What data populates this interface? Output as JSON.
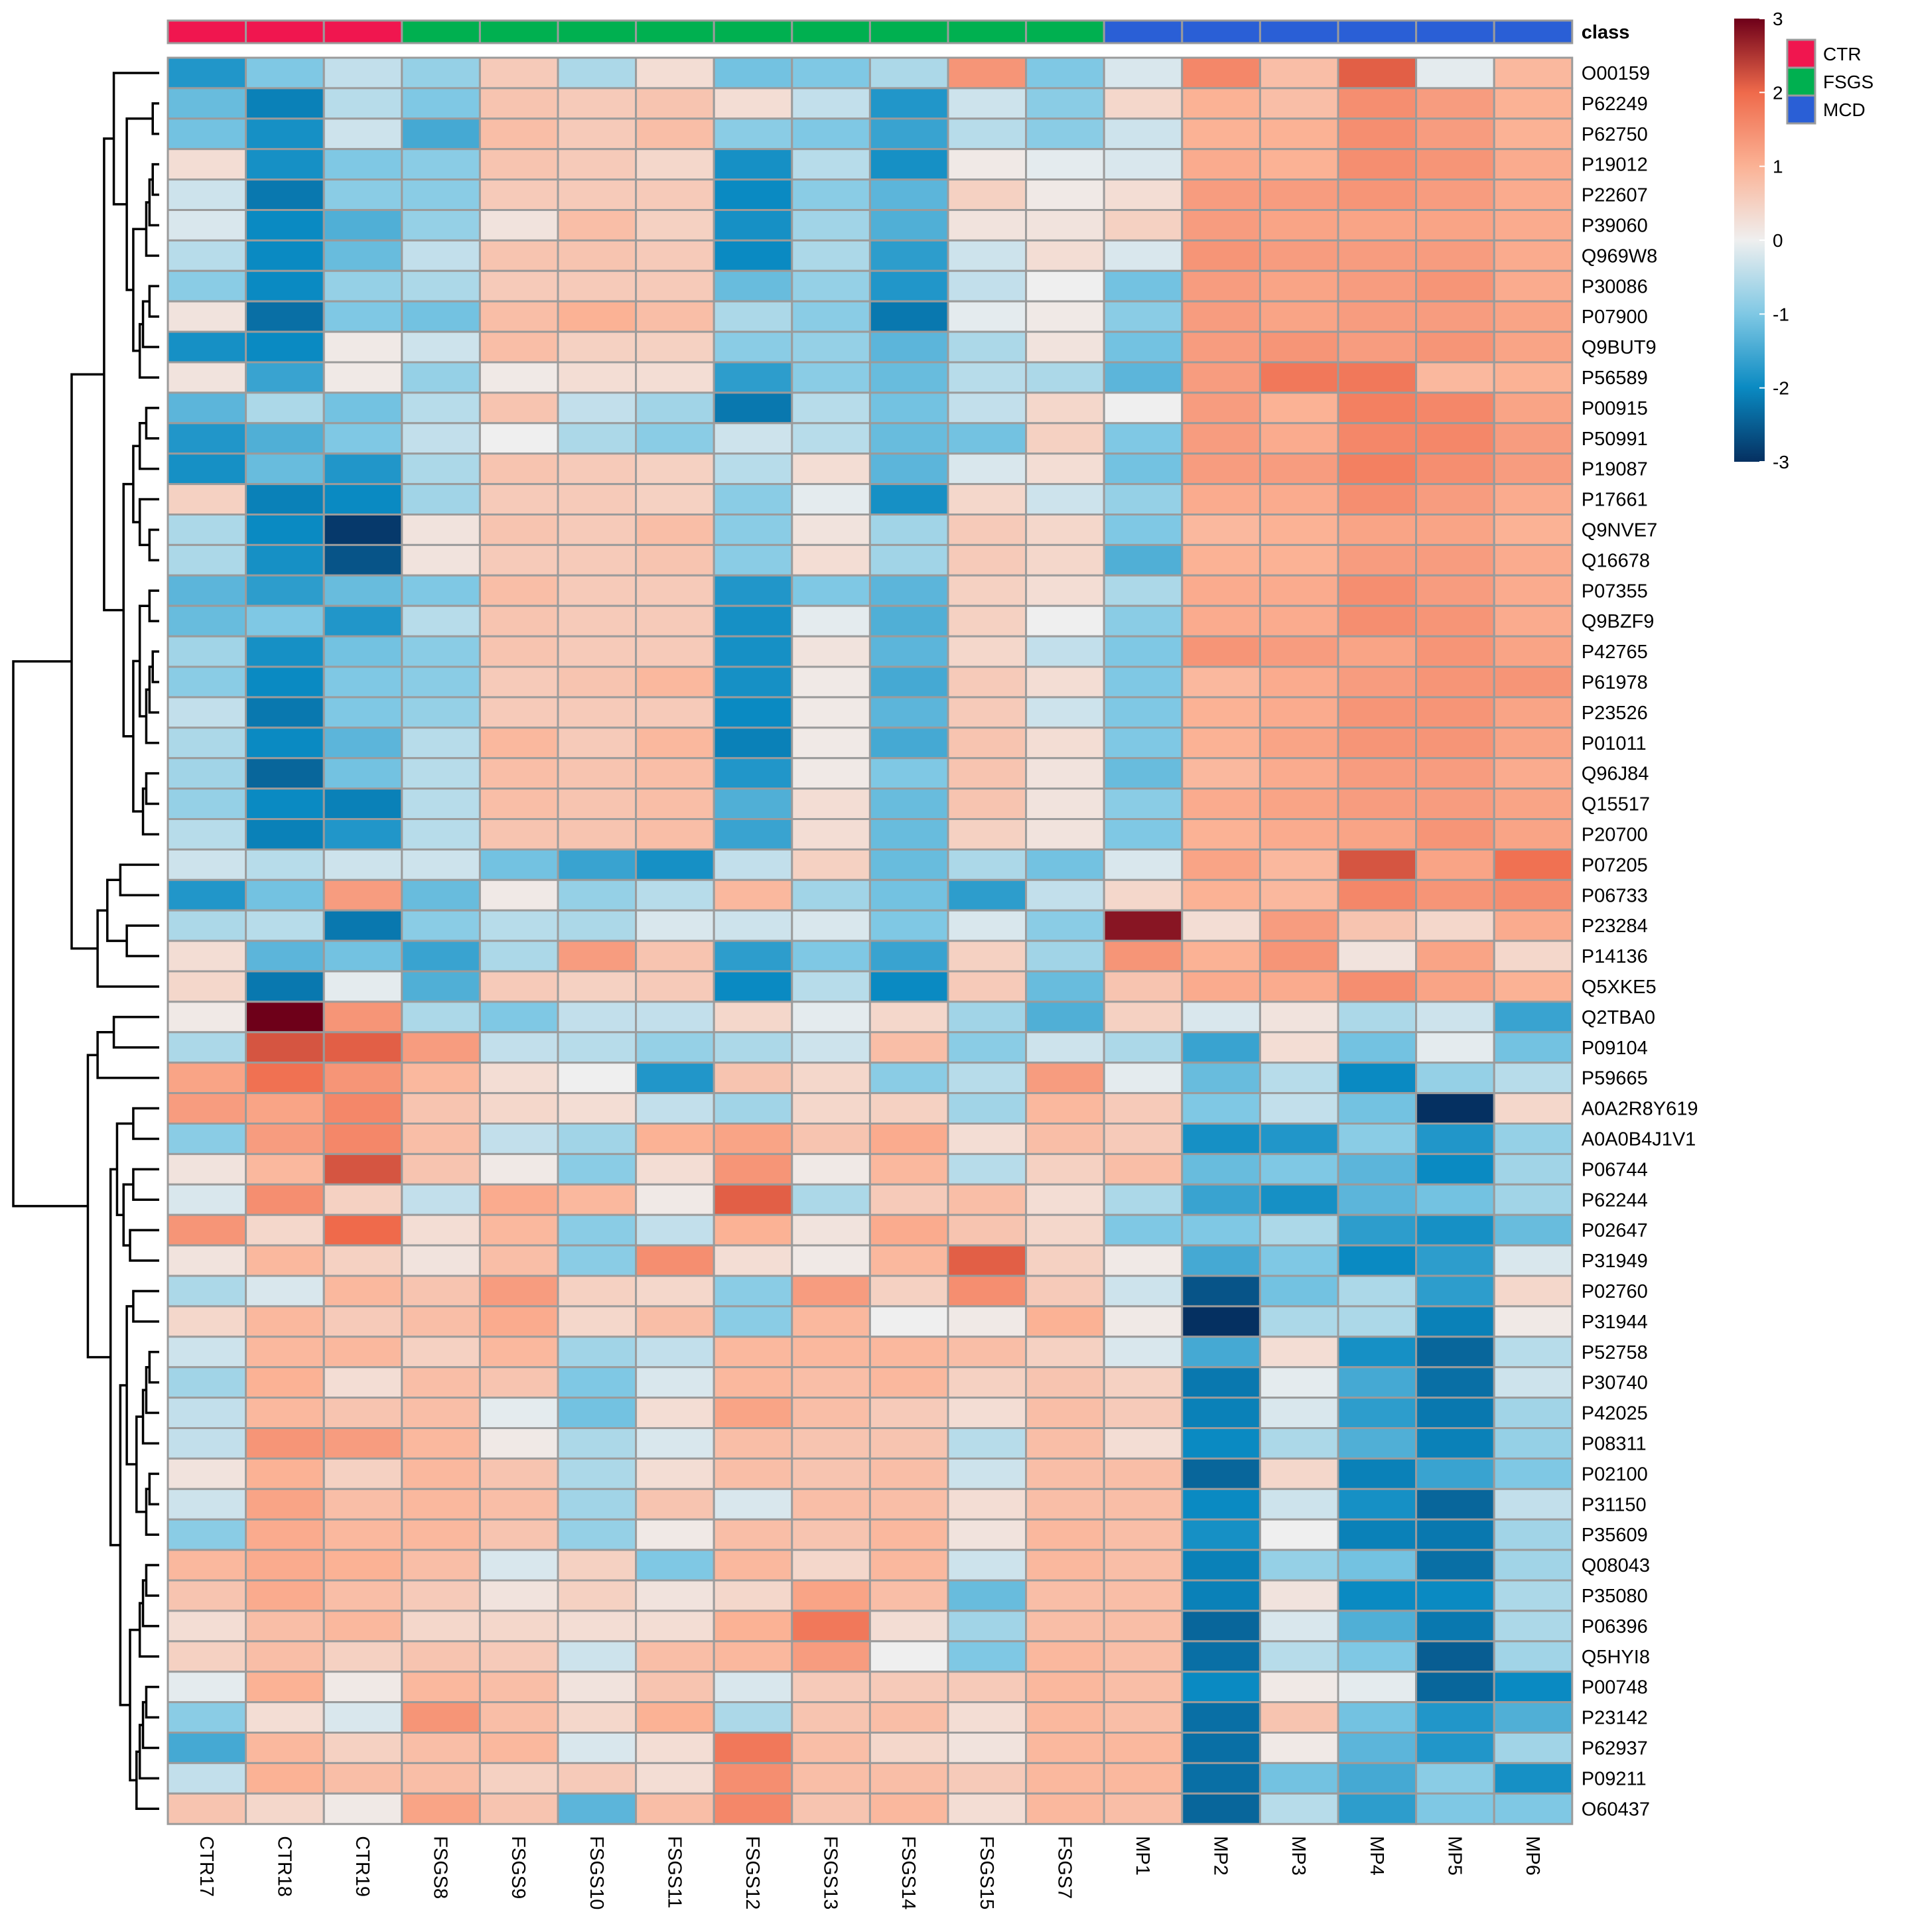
{
  "chart_data": {
    "type": "heatmap",
    "annotation_label": "class",
    "columns": [
      "CTR17",
      "CTR18",
      "CTR19",
      "FSGS8",
      "FSGS9",
      "FSGS10",
      "FSGS11",
      "FSGS12",
      "FSGS13",
      "FSGS14",
      "FSGS15",
      "FSGS7",
      "MP1",
      "MP2",
      "MP3",
      "MP4",
      "MP5",
      "MP6"
    ],
    "column_classes": [
      "CTR",
      "CTR",
      "CTR",
      "FSGS",
      "FSGS",
      "FSGS",
      "FSGS",
      "FSGS",
      "FSGS",
      "FSGS",
      "FSGS",
      "FSGS",
      "MCD",
      "MCD",
      "MCD",
      "MCD",
      "MCD",
      "MCD"
    ],
    "classes": [
      {
        "name": "CTR",
        "color": "#f0164f"
      },
      {
        "name": "FSGS",
        "color": "#00b050"
      },
      {
        "name": "MCD",
        "color": "#2a5fd6"
      }
    ],
    "colorscale": {
      "range": [
        -3,
        3
      ],
      "ticks": [
        3,
        2,
        1,
        0,
        -1,
        -2,
        -3
      ],
      "stops": [
        {
          "v": -3,
          "c": "#053061"
        },
        {
          "v": -2,
          "c": "#0a8ac2"
        },
        {
          "v": -1,
          "c": "#7fc8e4"
        },
        {
          "v": 0,
          "c": "#efefef"
        },
        {
          "v": 1,
          "c": "#fbb295"
        },
        {
          "v": 2,
          "c": "#ef6a4b"
        },
        {
          "v": 3,
          "c": "#6e0019"
        }
      ]
    },
    "rows": [
      "O00159",
      "P62249",
      "P62750",
      "P19012",
      "P22607",
      "P39060",
      "Q969W8",
      "P30086",
      "P07900",
      "Q9BUT9",
      "P56589",
      "P00915",
      "P50991",
      "P19087",
      "P17661",
      "Q9NVE7",
      "Q16678",
      "P07355",
      "Q9BZF9",
      "P42765",
      "P61978",
      "P23526",
      "P01011",
      "Q96J84",
      "Q15517",
      "P20700",
      "P07205",
      "P06733",
      "P23284",
      "P14136",
      "Q5XKE5",
      "Q2TBA0",
      "P09104",
      "P59665",
      "A0A2R8Y619",
      "A0A0B4J1V1",
      "P06744",
      "P62244",
      "P02647",
      "P31949",
      "P02760",
      "P31944",
      "P52758",
      "P30740",
      "P42025",
      "P08311",
      "P02100",
      "P31150",
      "P35609",
      "Q08043",
      "P35080",
      "P06396",
      "Q5HYI8",
      "P00748",
      "P23142",
      "P62937",
      "P09211",
      "O60437"
    ],
    "values": [
      [
        -1.8,
        -1.0,
        -0.4,
        -0.8,
        0.6,
        -0.6,
        0.3,
        -1.1,
        -1.0,
        -0.6,
        1.4,
        -1.0,
        -0.2,
        1.6,
        0.8,
        2.1,
        -0.1,
        0.9
      ],
      [
        -1.2,
        -2.1,
        -0.5,
        -1.0,
        0.7,
        0.6,
        0.7,
        0.3,
        -0.4,
        -1.8,
        -0.3,
        -0.9,
        0.4,
        1.0,
        0.8,
        1.5,
        1.3,
        1.0
      ],
      [
        -1.1,
        -1.9,
        -0.3,
        -1.5,
        0.8,
        0.6,
        0.8,
        -0.9,
        -1.0,
        -1.6,
        -0.5,
        -0.9,
        -0.3,
        1.0,
        1.0,
        1.5,
        1.3,
        1.0
      ],
      [
        0.3,
        -1.9,
        -1.0,
        -0.9,
        0.7,
        0.6,
        0.4,
        -1.9,
        -0.5,
        -1.9,
        0.1,
        -0.1,
        -0.2,
        1.1,
        1.0,
        1.5,
        1.4,
        1.1
      ],
      [
        -0.3,
        -2.2,
        -0.9,
        -0.9,
        0.6,
        0.6,
        0.6,
        -2.0,
        -0.9,
        -1.3,
        0.5,
        0.1,
        0.3,
        1.3,
        1.3,
        1.4,
        1.3,
        1.1
      ],
      [
        -0.2,
        -2.0,
        -1.4,
        -0.8,
        0.2,
        0.8,
        0.5,
        -1.9,
        -0.7,
        -1.4,
        0.2,
        0.2,
        0.5,
        1.3,
        1.2,
        1.2,
        1.2,
        1.1
      ],
      [
        -0.5,
        -2.0,
        -1.2,
        -0.4,
        0.7,
        0.7,
        0.6,
        -2.0,
        -0.6,
        -1.7,
        -0.3,
        0.3,
        -0.2,
        1.4,
        1.3,
        1.3,
        1.3,
        1.1
      ],
      [
        -0.9,
        -2.0,
        -0.8,
        -0.6,
        0.6,
        0.6,
        0.6,
        -1.2,
        -0.8,
        -1.8,
        -0.4,
        0.0,
        -1.1,
        1.3,
        1.2,
        1.3,
        1.4,
        1.1
      ],
      [
        0.2,
        -2.3,
        -1.0,
        -1.1,
        0.8,
        1.0,
        0.8,
        -0.6,
        -0.9,
        -2.2,
        -0.1,
        0.1,
        -0.9,
        1.3,
        1.2,
        1.3,
        1.3,
        1.2
      ],
      [
        -1.9,
        -2.0,
        0.1,
        -0.3,
        0.8,
        0.5,
        0.5,
        -0.9,
        -0.8,
        -1.3,
        -0.6,
        0.2,
        -1.1,
        1.3,
        1.4,
        1.3,
        1.4,
        1.2
      ],
      [
        0.2,
        -1.6,
        0.1,
        -0.8,
        0.1,
        0.3,
        0.3,
        -1.7,
        -0.9,
        -1.2,
        -0.5,
        -0.6,
        -1.3,
        1.3,
        1.8,
        1.8,
        0.9,
        1.0
      ],
      [
        -1.3,
        -0.6,
        -1.1,
        -0.5,
        0.7,
        -0.4,
        -0.7,
        -2.2,
        -0.5,
        -1.1,
        -0.4,
        0.4,
        0.0,
        1.3,
        1.0,
        1.7,
        1.6,
        1.2
      ],
      [
        -1.8,
        -1.4,
        -1.0,
        -0.4,
        0.0,
        -0.6,
        -0.9,
        -0.3,
        -0.5,
        -1.2,
        -1.1,
        0.5,
        -1.0,
        1.3,
        1.1,
        1.6,
        1.6,
        1.3
      ],
      [
        -1.9,
        -1.2,
        -1.8,
        -0.6,
        0.7,
        0.6,
        0.5,
        -0.5,
        0.3,
        -1.3,
        -0.2,
        0.3,
        -1.1,
        1.3,
        1.3,
        1.7,
        1.5,
        1.3
      ],
      [
        0.5,
        -2.1,
        -2.0,
        -0.7,
        0.6,
        0.6,
        0.5,
        -0.9,
        -0.1,
        -1.9,
        0.4,
        -0.3,
        -0.8,
        1.1,
        1.1,
        1.5,
        1.3,
        1.1
      ],
      [
        -0.6,
        -2.0,
        -2.9,
        0.2,
        0.7,
        0.6,
        0.8,
        -0.9,
        0.2,
        -0.7,
        0.6,
        0.4,
        -1.0,
        0.9,
        1.0,
        1.2,
        1.2,
        1.0
      ],
      [
        -0.6,
        -1.9,
        -2.6,
        0.2,
        0.6,
        0.6,
        0.7,
        -0.9,
        0.3,
        -0.7,
        0.6,
        0.4,
        -1.4,
        1.0,
        1.0,
        1.3,
        1.3,
        1.1
      ],
      [
        -1.3,
        -1.7,
        -1.2,
        -1.0,
        0.8,
        0.6,
        0.6,
        -1.8,
        -1.0,
        -1.3,
        0.5,
        0.3,
        -0.6,
        1.1,
        1.1,
        1.5,
        1.3,
        1.1
      ],
      [
        -1.2,
        -1.0,
        -1.8,
        -0.5,
        0.7,
        0.6,
        0.6,
        -1.9,
        -0.1,
        -1.4,
        0.5,
        0.0,
        -0.9,
        1.1,
        1.1,
        1.5,
        1.4,
        1.1
      ],
      [
        -0.7,
        -1.9,
        -1.1,
        -0.9,
        0.7,
        0.6,
        0.6,
        -1.9,
        0.2,
        -1.3,
        0.4,
        -0.4,
        -1.0,
        1.4,
        1.3,
        1.2,
        1.4,
        1.2
      ],
      [
        -0.9,
        -2.0,
        -1.0,
        -0.9,
        0.6,
        0.7,
        0.9,
        -1.9,
        0.1,
        -1.5,
        0.6,
        0.3,
        -1.0,
        0.9,
        1.1,
        1.3,
        1.4,
        1.4
      ],
      [
        -0.4,
        -2.2,
        -1.0,
        -0.8,
        0.6,
        0.6,
        0.6,
        -2.0,
        0.1,
        -1.3,
        0.6,
        -0.3,
        -1.0,
        1.0,
        1.1,
        1.4,
        1.4,
        1.2
      ],
      [
        -0.6,
        -2.0,
        -1.3,
        -0.5,
        0.9,
        0.6,
        0.9,
        -2.1,
        0.1,
        -1.5,
        0.7,
        0.3,
        -1.0,
        1.0,
        1.2,
        1.4,
        1.4,
        1.2
      ],
      [
        -0.7,
        -2.4,
        -1.1,
        -0.5,
        0.8,
        0.7,
        0.8,
        -1.8,
        0.1,
        -1.0,
        0.7,
        0.2,
        -1.2,
        0.9,
        1.1,
        1.3,
        1.3,
        1.1
      ],
      [
        -0.8,
        -2.0,
        -2.1,
        -0.5,
        0.8,
        0.7,
        0.8,
        -1.4,
        0.3,
        -1.2,
        0.7,
        0.2,
        -0.9,
        1.1,
        1.2,
        1.3,
        1.3,
        1.2
      ],
      [
        -0.5,
        -2.1,
        -1.8,
        -0.5,
        0.7,
        0.7,
        0.8,
        -1.6,
        0.3,
        -1.2,
        0.5,
        0.2,
        -1.0,
        1.0,
        1.1,
        1.2,
        1.4,
        1.2
      ],
      [
        -0.3,
        -0.5,
        -0.3,
        -0.3,
        -1.1,
        -1.6,
        -1.9,
        -0.4,
        0.5,
        -1.2,
        -0.6,
        -1.1,
        -0.2,
        1.2,
        0.9,
        2.2,
        1.2,
        1.9
      ],
      [
        -1.8,
        -1.1,
        1.3,
        -1.2,
        0.1,
        -0.8,
        -0.5,
        0.9,
        -0.7,
        -1.1,
        -1.7,
        -0.4,
        0.4,
        1.0,
        0.9,
        1.6,
        1.4,
        1.5
      ],
      [
        -0.6,
        -0.5,
        -2.2,
        -0.9,
        -0.5,
        -0.6,
        -0.2,
        -0.3,
        -0.2,
        -1.0,
        -0.2,
        -0.9,
        2.8,
        0.3,
        1.3,
        0.7,
        0.4,
        1.1
      ],
      [
        0.3,
        -1.3,
        -1.1,
        -1.6,
        -0.6,
        1.3,
        0.7,
        -1.7,
        -1.0,
        -1.6,
        0.5,
        -0.7,
        1.4,
        1.0,
        1.4,
        0.2,
        1.2,
        0.4
      ],
      [
        0.4,
        -2.2,
        -0.1,
        -1.4,
        0.6,
        0.5,
        0.6,
        -2.0,
        -0.5,
        -2.0,
        0.6,
        -1.2,
        0.7,
        1.1,
        1.1,
        1.5,
        1.2,
        1.0
      ],
      [
        0.1,
        3.2,
        1.4,
        -0.6,
        -1.0,
        -0.4,
        -0.4,
        0.4,
        -0.1,
        0.4,
        -0.7,
        -1.4,
        0.5,
        -0.2,
        0.2,
        -0.6,
        -0.3,
        -1.6
      ],
      [
        -0.6,
        2.2,
        2.1,
        1.3,
        -0.4,
        -0.5,
        -0.8,
        -0.6,
        -0.3,
        0.8,
        -0.9,
        -0.3,
        -0.6,
        -1.6,
        0.3,
        -1.1,
        -0.1,
        -1.1
      ],
      [
        1.2,
        1.9,
        1.4,
        0.9,
        0.3,
        0.0,
        -1.8,
        0.7,
        0.4,
        -0.9,
        -0.5,
        1.3,
        -0.1,
        -1.2,
        -0.5,
        -2.0,
        -0.8,
        -0.5
      ],
      [
        1.3,
        1.2,
        1.6,
        0.7,
        0.4,
        0.3,
        -0.4,
        -0.7,
        0.4,
        0.5,
        -0.7,
        0.9,
        0.6,
        -1.0,
        -0.4,
        -1.1,
        -3.0,
        0.4
      ],
      [
        -0.9,
        1.3,
        1.6,
        0.8,
        -0.4,
        -0.7,
        1.0,
        1.2,
        0.7,
        1.1,
        0.3,
        0.8,
        0.6,
        -1.9,
        -1.8,
        -0.9,
        -1.8,
        -0.8
      ],
      [
        0.2,
        0.9,
        2.2,
        0.7,
        0.1,
        -0.9,
        0.3,
        1.4,
        0.1,
        0.9,
        -0.5,
        0.5,
        0.8,
        -1.2,
        -1.0,
        -1.3,
        -2.0,
        -0.7
      ],
      [
        -0.2,
        1.5,
        0.5,
        -0.4,
        1.1,
        0.9,
        0.1,
        2.1,
        -0.6,
        0.6,
        0.8,
        0.3,
        -0.6,
        -1.6,
        -1.9,
        -1.3,
        -1.1,
        -0.7
      ],
      [
        1.4,
        0.4,
        2.0,
        0.3,
        0.9,
        -0.9,
        -0.4,
        1.0,
        0.2,
        1.1,
        0.7,
        0.4,
        -1.0,
        -1.0,
        -0.6,
        -1.7,
        -1.9,
        -1.2
      ],
      [
        0.2,
        0.9,
        0.5,
        0.2,
        0.8,
        -0.9,
        1.5,
        0.3,
        0.1,
        0.9,
        2.1,
        0.5,
        0.1,
        -1.5,
        -1.0,
        -2.0,
        -1.7,
        -0.2
      ],
      [
        -0.6,
        -0.2,
        0.9,
        0.7,
        1.3,
        0.5,
        0.4,
        -0.9,
        1.3,
        0.5,
        1.5,
        0.6,
        -0.3,
        -2.6,
        -1.1,
        -0.6,
        -1.7,
        0.4
      ],
      [
        0.4,
        0.9,
        0.6,
        0.8,
        1.1,
        0.4,
        0.8,
        -0.9,
        0.9,
        0.0,
        0.1,
        1.0,
        0.1,
        -3.0,
        -0.6,
        -0.6,
        -2.1,
        0.1
      ],
      [
        -0.3,
        0.9,
        0.9,
        0.5,
        0.9,
        -0.7,
        -0.4,
        0.9,
        0.9,
        0.9,
        0.8,
        0.5,
        -0.2,
        -1.5,
        0.3,
        -1.9,
        -2.4,
        -0.5
      ],
      [
        -0.7,
        1.0,
        0.3,
        0.8,
        0.7,
        -1.0,
        -0.2,
        0.9,
        0.8,
        0.9,
        0.5,
        0.7,
        0.5,
        -2.2,
        -0.1,
        -1.5,
        -2.3,
        -0.3
      ],
      [
        -0.4,
        0.9,
        0.7,
        0.8,
        -0.1,
        -1.1,
        0.3,
        1.2,
        0.8,
        0.6,
        0.3,
        0.8,
        0.6,
        -2.1,
        -0.2,
        -1.7,
        -2.2,
        -0.7
      ],
      [
        -0.4,
        1.4,
        1.3,
        0.9,
        0.1,
        -0.6,
        -0.2,
        0.8,
        0.7,
        0.7,
        -0.5,
        0.8,
        0.3,
        -2.0,
        -0.6,
        -1.4,
        -2.1,
        -0.8
      ],
      [
        0.2,
        1.0,
        0.5,
        0.9,
        0.7,
        -0.6,
        0.3,
        0.8,
        0.7,
        0.8,
        -0.3,
        0.8,
        0.8,
        -2.4,
        0.4,
        -2.1,
        -1.6,
        -1.0
      ],
      [
        -0.3,
        1.2,
        0.8,
        0.9,
        0.8,
        -0.7,
        0.7,
        -0.2,
        0.8,
        0.8,
        0.3,
        0.8,
        0.8,
        -2.0,
        -0.3,
        -1.9,
        -2.4,
        -0.4
      ],
      [
        -0.9,
        1.1,
        0.9,
        0.9,
        0.7,
        -0.8,
        0.1,
        0.8,
        0.7,
        0.9,
        0.2,
        0.9,
        0.8,
        -1.9,
        0.0,
        -2.1,
        -2.2,
        -0.7
      ],
      [
        0.9,
        1.1,
        1.0,
        0.8,
        -0.2,
        0.5,
        -1.0,
        0.9,
        0.4,
        0.9,
        -0.3,
        0.9,
        0.8,
        -2.1,
        -0.8,
        -1.1,
        -2.3,
        -0.7
      ],
      [
        0.7,
        1.1,
        0.8,
        0.6,
        0.2,
        0.5,
        0.2,
        0.4,
        1.2,
        0.8,
        -1.2,
        0.8,
        0.8,
        -2.1,
        0.2,
        -2.0,
        -2.0,
        -0.6
      ],
      [
        0.3,
        0.8,
        0.9,
        0.4,
        0.4,
        0.3,
        0.3,
        1.0,
        1.8,
        0.3,
        -0.7,
        0.8,
        0.8,
        -2.4,
        -0.2,
        -1.4,
        -2.2,
        -0.6
      ],
      [
        0.5,
        0.8,
        0.5,
        0.7,
        0.6,
        -0.3,
        0.8,
        0.9,
        1.3,
        0.0,
        -1.0,
        0.9,
        0.8,
        -2.3,
        -0.5,
        -1.0,
        -2.5,
        -0.7
      ],
      [
        -0.1,
        1.0,
        0.1,
        0.9,
        0.8,
        0.2,
        0.7,
        -0.2,
        0.6,
        0.6,
        0.6,
        0.9,
        0.8,
        -2.0,
        0.1,
        -0.1,
        -2.4,
        -2.0
      ],
      [
        -0.9,
        0.3,
        -0.2,
        1.4,
        0.8,
        0.4,
        1.0,
        -0.6,
        0.7,
        0.8,
        0.3,
        0.9,
        0.8,
        -2.3,
        0.7,
        -1.1,
        -1.8,
        -1.4
      ],
      [
        -1.5,
        0.9,
        0.5,
        0.8,
        0.9,
        -0.2,
        0.3,
        1.8,
        0.8,
        0.4,
        0.2,
        0.9,
        0.9,
        -2.3,
        0.1,
        -1.3,
        -1.8,
        -0.7
      ],
      [
        -0.4,
        1.0,
        0.8,
        0.8,
        0.5,
        0.6,
        0.3,
        1.5,
        0.8,
        0.8,
        0.6,
        0.9,
        0.9,
        -2.3,
        -1.1,
        -1.5,
        -0.9,
        -1.9
      ],
      [
        0.7,
        0.4,
        0.1,
        1.2,
        0.7,
        -1.3,
        0.8,
        1.6,
        0.7,
        0.9,
        0.3,
        0.9,
        0.8,
        -2.4,
        -0.5,
        -1.7,
        -1.0,
        -1.0
      ]
    ]
  }
}
